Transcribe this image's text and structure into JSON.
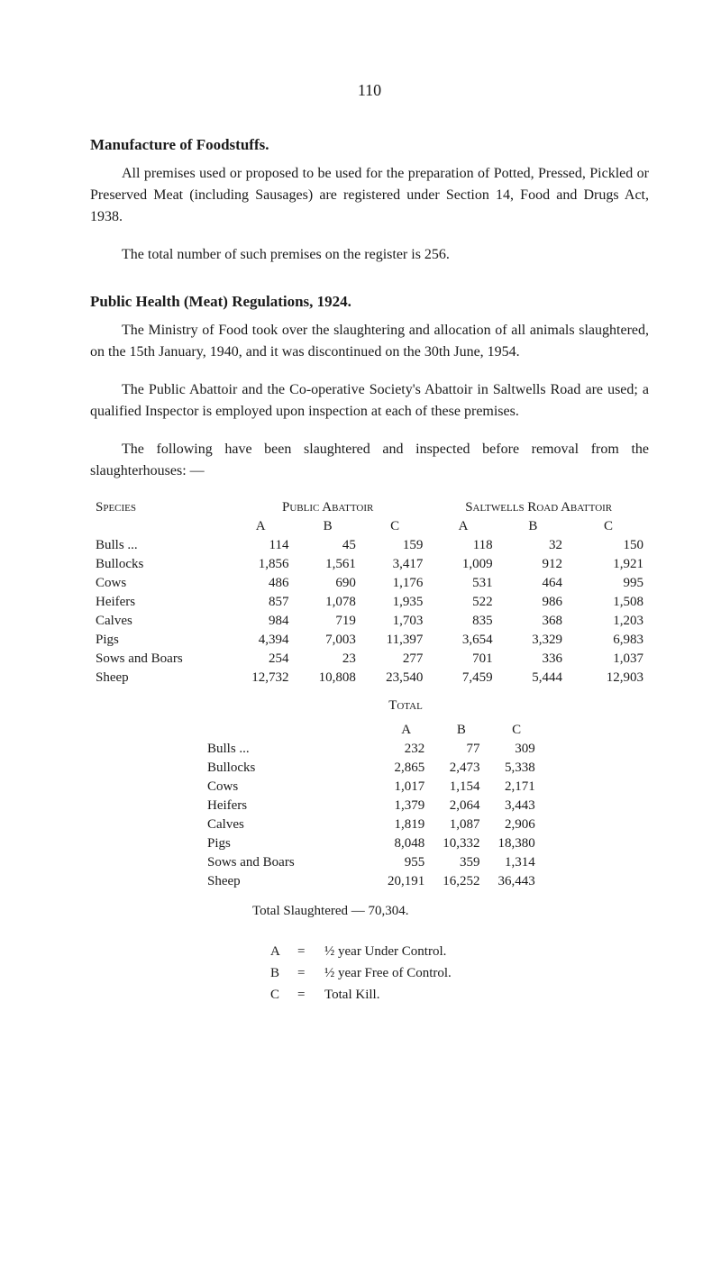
{
  "page_number": "110",
  "section1": {
    "heading": "Manufacture of Foodstuffs.",
    "para1": "All premises used or proposed to be used for the preparation of Potted, Pressed, Pickled or Preserved Meat (including Sausages) are registered under Section 14, Food and Drugs Act, 1938.",
    "para2": "The total number of such premises on the register is 256."
  },
  "section2": {
    "heading": "Public Health (Meat) Regulations, 1924.",
    "para1": "The Ministry of Food took over the slaughtering and allocation of all animals slaughtered, on the 15th January, 1940, and it was discontinued on the 30th June, 1954.",
    "para2": "The Public Abattoir and the Co-operative Society's Abattoir in Saltwells Road are used; a qualified Inspector is employed upon inspection at each of these premises.",
    "para3": "The following have been slaughtered and inspected before removal from the slaughterhouses: —"
  },
  "table1": {
    "species_label": "Species",
    "header_public": "Public Abattoir",
    "header_saltwells": "Saltwells Road Abattoir",
    "cols": [
      "A",
      "B",
      "C",
      "A",
      "B",
      "C"
    ],
    "rows": [
      {
        "name": "Bulls  ...",
        "values": [
          "114",
          "45",
          "159",
          "118",
          "32",
          "150"
        ]
      },
      {
        "name": "Bullocks",
        "values": [
          "1,856",
          "1,561",
          "3,417",
          "1,009",
          "912",
          "1,921"
        ]
      },
      {
        "name": "Cows",
        "values": [
          "486",
          "690",
          "1,176",
          "531",
          "464",
          "995"
        ]
      },
      {
        "name": "Heifers",
        "values": [
          "857",
          "1,078",
          "1,935",
          "522",
          "986",
          "1,508"
        ]
      },
      {
        "name": "Calves",
        "values": [
          "984",
          "719",
          "1,703",
          "835",
          "368",
          "1,203"
        ]
      },
      {
        "name": "Pigs",
        "values": [
          "4,394",
          "7,003",
          "11,397",
          "3,654",
          "3,329",
          "6,983"
        ]
      },
      {
        "name": "Sows and Boars",
        "values": [
          "254",
          "23",
          "277",
          "701",
          "336",
          "1,037"
        ]
      },
      {
        "name": "Sheep",
        "values": [
          "12,732",
          "10,808",
          "23,540",
          "7,459",
          "5,444",
          "12,903"
        ]
      }
    ]
  },
  "table2": {
    "header": "Total",
    "cols": [
      "A",
      "B",
      "C"
    ],
    "rows": [
      {
        "name": "Bulls  ...",
        "values": [
          "232",
          "77",
          "309"
        ]
      },
      {
        "name": "Bullocks",
        "values": [
          "2,865",
          "2,473",
          "5,338"
        ]
      },
      {
        "name": "Cows",
        "values": [
          "1,017",
          "1,154",
          "2,171"
        ]
      },
      {
        "name": "Heifers",
        "values": [
          "1,379",
          "2,064",
          "3,443"
        ]
      },
      {
        "name": "Calves",
        "values": [
          "1,819",
          "1,087",
          "2,906"
        ]
      },
      {
        "name": "Pigs",
        "values": [
          "8,048",
          "10,332",
          "18,380"
        ]
      },
      {
        "name": "Sows and Boars",
        "values": [
          "955",
          "359",
          "1,314"
        ]
      },
      {
        "name": "Sheep",
        "values": [
          "20,191",
          "16,252",
          "36,443"
        ]
      }
    ]
  },
  "total_slaughtered": "Total Slaughtered   —   70,304.",
  "legend": {
    "a": {
      "letter": "A",
      "eq": "=",
      "text": "½ year Under Control."
    },
    "b": {
      "letter": "B",
      "eq": "=",
      "text": "½ year Free of Control."
    },
    "c": {
      "letter": "C",
      "eq": "=",
      "text": "Total Kill."
    }
  }
}
